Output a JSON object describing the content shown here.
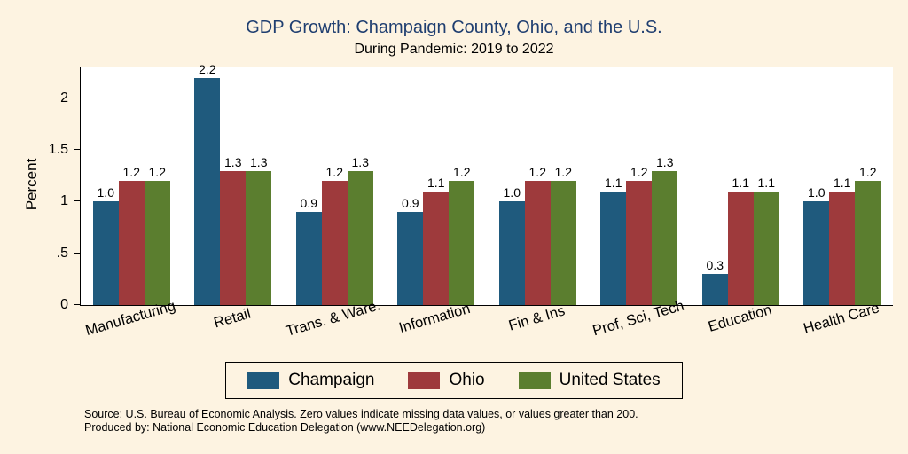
{
  "title": "GDP Growth: Champaign County, Ohio, and the U.S.",
  "subtitle": "During Pandemic: 2019 to 2022",
  "colors": {
    "background": "#fdf3e1",
    "title_text": "#1f3e70",
    "champaign": "#1f5a7d",
    "ohio": "#9e3a3c",
    "united_states": "#5b7e2f"
  },
  "chart_data": {
    "type": "bar",
    "title": "GDP Growth: Champaign County, Ohio, and the U.S.",
    "subtitle": "During Pandemic: 2019 to 2022",
    "categories": [
      "Manufacturing",
      "Retail",
      "Trans. & Ware.",
      "Information",
      "Fin & Ins",
      "Prof, Sci, Tech",
      "Education",
      "Health Care"
    ],
    "series": [
      {
        "name": "Champaign",
        "color": "#1f5a7d",
        "values": [
          1.0,
          2.2,
          0.9,
          0.9,
          1.0,
          1.1,
          0.3,
          1.0
        ]
      },
      {
        "name": "Ohio",
        "color": "#9e3a3c",
        "values": [
          1.2,
          1.3,
          1.2,
          1.1,
          1.2,
          1.2,
          1.1,
          1.1
        ]
      },
      {
        "name": "United States",
        "color": "#5b7e2f",
        "values": [
          1.2,
          1.3,
          1.3,
          1.2,
          1.2,
          1.3,
          1.1,
          1.2
        ]
      }
    ],
    "xlabel": "",
    "ylabel": "Percent",
    "yticks": [
      {
        "value": 0,
        "label": "0"
      },
      {
        "value": 0.5,
        "label": ".5"
      },
      {
        "value": 1,
        "label": "1"
      },
      {
        "value": 1.5,
        "label": "1.5"
      },
      {
        "value": 2,
        "label": "2"
      }
    ],
    "ylim": [
      0,
      2.3
    ],
    "grid": false,
    "legend_position": "bottom"
  },
  "notes": [
    "Source: U.S. Bureau of Economic Analysis. Zero values indicate missing data values, or values greater than 200.",
    "Produced by: National Economic Education Delegation (www.NEEDelegation.org)"
  ]
}
